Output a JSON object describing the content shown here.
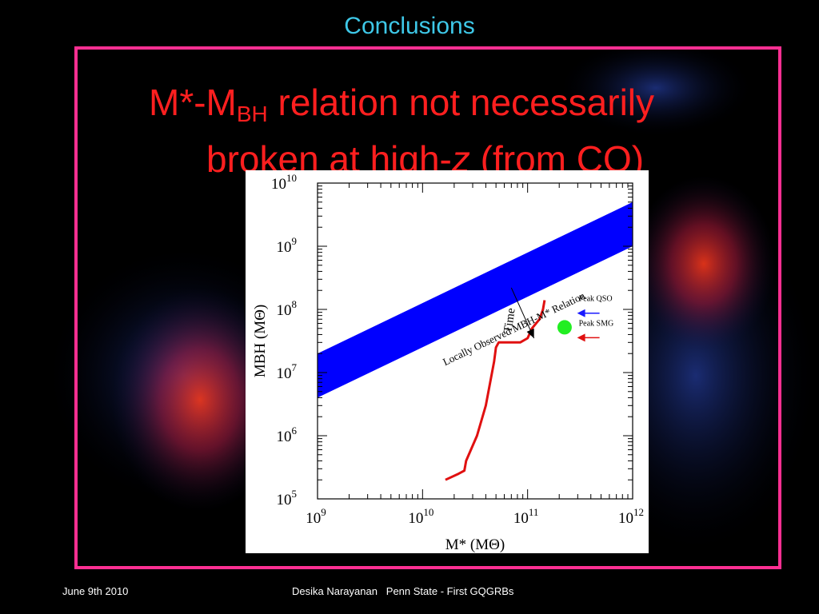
{
  "slide": {
    "title": "Conclusions",
    "headline_prefix": "M*-M",
    "headline_sub": "BH",
    "headline_mid": " relation not necessarily",
    "headline_line2_a": "broken at high-",
    "headline_line2_z": "z",
    "headline_line2_b": " (from CO)",
    "footer_left": "June 9th 2010",
    "footer_center": "Desika Narayanan   Penn State - First GQGRBs"
  },
  "colors": {
    "title": "#3ec8e8",
    "frame": "#ff2f92",
    "headline": "#ff1f1f",
    "band": "#0000ff",
    "track": "#e01010",
    "marker": "#22ee22",
    "qso_arrow": "#1a1aff",
    "smg_arrow": "#e01010"
  },
  "chart_data": {
    "type": "line",
    "x_scale": "log",
    "y_scale": "log",
    "xlim": [
      1000000000,
      1000000000000
    ],
    "ylim": [
      100000,
      10000000000
    ],
    "xlabel": "M* (MΘ)",
    "ylabel": "MBH (MΘ)",
    "x_ticks": [
      1000000000,
      10000000000,
      100000000000,
      1000000000000
    ],
    "y_ticks": [
      100000,
      1000000,
      10000000,
      100000000,
      1000000000,
      10000000000
    ],
    "x_tick_labels": [
      "10^9",
      "10^10",
      "10^11",
      "10^12"
    ],
    "y_tick_labels": [
      "10^5",
      "10^6",
      "10^7",
      "10^8",
      "10^9",
      "10^10"
    ],
    "band": {
      "label": "Locally Observed MBH-M* Relation",
      "x": [
        1000000000,
        1000000000000
      ],
      "upper": [
        20000000,
        5000000000
      ],
      "lower": [
        4000000,
        1000000000
      ]
    },
    "series": [
      {
        "style": "track",
        "x": [
          16500000000,
          22000000000,
          25000000000,
          26000000000,
          33000000000,
          40000000000,
          48000000000,
          50000000000,
          53000000000,
          60000000000,
          85000000000,
          100000000000,
          110000000000,
          130000000000,
          140000000000,
          145000000000
        ],
        "y": [
          200000,
          250000,
          280000,
          400000,
          1000000,
          3000000,
          15000000,
          25000000,
          30000000,
          30000000,
          30000000,
          35000000,
          50000000,
          70000000,
          100000000,
          140000000
        ]
      }
    ],
    "points": [
      {
        "x": 225000000000,
        "y": 52000000
      }
    ],
    "annotations": {
      "time_label": "Time",
      "time_arrow": {
        "from": [
          70000000000,
          220000000
        ],
        "to": [
          115000000000,
          35000000
        ]
      },
      "peak_qso": {
        "text": "Peak QSO",
        "at": [
          240000000000,
          110000000
        ]
      },
      "peak_smg": {
        "text": "Peak SMG",
        "at": [
          240000000000,
          45000000
        ]
      }
    }
  }
}
